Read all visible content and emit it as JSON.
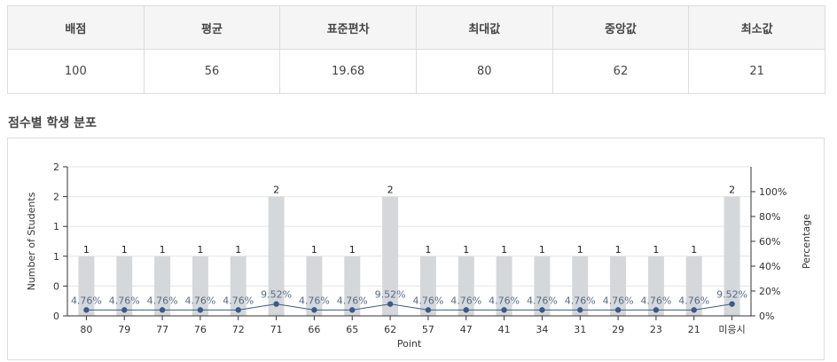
{
  "stats_table": {
    "headers": [
      "배점",
      "평균",
      "표준편차",
      "최대값",
      "중앙값",
      "최소값"
    ],
    "values": [
      "100",
      "56",
      "19.68",
      "80",
      "62",
      "21"
    ]
  },
  "section_title": "점수별 학생 분포",
  "chart_data": {
    "type": "bar",
    "categories": [
      "80",
      "79",
      "77",
      "76",
      "72",
      "71",
      "66",
      "65",
      "62",
      "57",
      "47",
      "41",
      "34",
      "31",
      "29",
      "23",
      "21",
      "미응시"
    ],
    "series": [
      {
        "values": [
          1,
          1,
          1,
          1,
          1,
          2,
          1,
          1,
          2,
          1,
          1,
          1,
          1,
          1,
          1,
          1,
          1,
          2
        ]
      },
      {
        "values": [
          4.76,
          4.76,
          4.76,
          4.76,
          4.76,
          9.52,
          4.76,
          4.76,
          9.52,
          4.76,
          4.76,
          4.76,
          4.76,
          4.76,
          4.76,
          4.76,
          4.76,
          9.52
        ]
      }
    ],
    "bar_labels": [
      "1",
      "1",
      "1",
      "1",
      "1",
      "2",
      "1",
      "1",
      "2",
      "1",
      "1",
      "1",
      "1",
      "1",
      "1",
      "1",
      "1",
      "2"
    ],
    "percent_labels": [
      "4.76%",
      "4.76%",
      "4.76%",
      "4.76%",
      "4.76%",
      "9.52%",
      "4.76%",
      "4.76%",
      "9.52%",
      "4.76%",
      "4.76%",
      "4.76%",
      "4.76%",
      "4.76%",
      "4.76%",
      "4.76%",
      "4.76%",
      "9.52%"
    ],
    "xlabel": "Point",
    "ylabel": "Number of Students",
    "y2label": "Percentage",
    "ylim": [
      0,
      2.5
    ],
    "y_tick_labels": [
      "0",
      "0",
      "1",
      "1",
      "2",
      "2"
    ],
    "y2lim": [
      0,
      120
    ],
    "y2_tick_labels": [
      "0%",
      "20%",
      "40%",
      "60%",
      "80%",
      "100%"
    ],
    "grid": true,
    "colors": {
      "bar": "#d5d8db",
      "line": "#3c5a85"
    }
  }
}
